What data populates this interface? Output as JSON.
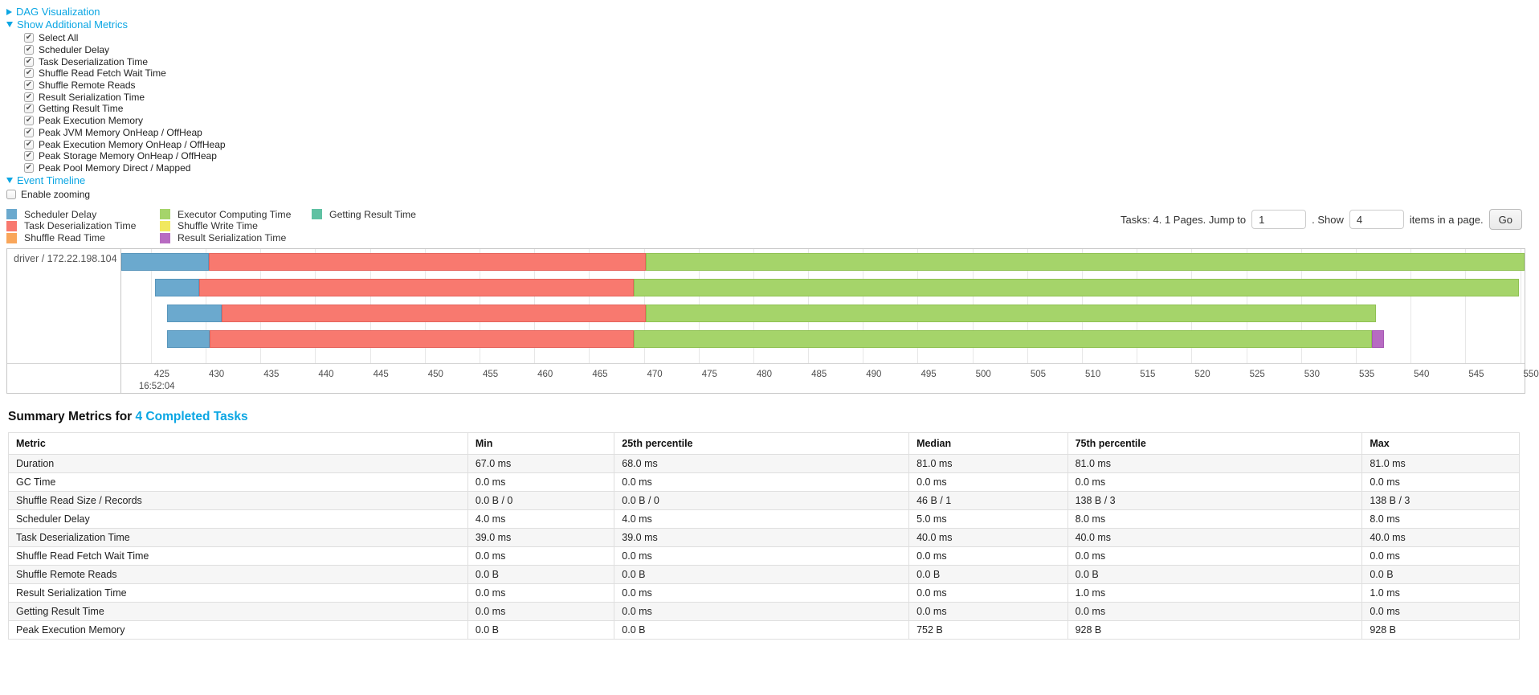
{
  "sections": {
    "dag": {
      "label": "DAG Visualization",
      "expanded": false
    },
    "metrics": {
      "label": "Show Additional Metrics",
      "expanded": true
    },
    "timeline": {
      "label": "Event Timeline",
      "expanded": true
    }
  },
  "metric_checkboxes": [
    {
      "label": "Select All",
      "checked": true
    },
    {
      "label": "Scheduler Delay",
      "checked": true
    },
    {
      "label": "Task Deserialization Time",
      "checked": true
    },
    {
      "label": "Shuffle Read Fetch Wait Time",
      "checked": true
    },
    {
      "label": "Shuffle Remote Reads",
      "checked": true
    },
    {
      "label": "Result Serialization Time",
      "checked": true
    },
    {
      "label": "Getting Result Time",
      "checked": true
    },
    {
      "label": "Peak Execution Memory",
      "checked": true
    },
    {
      "label": "Peak JVM Memory OnHeap / OffHeap",
      "checked": true
    },
    {
      "label": "Peak Execution Memory OnHeap / OffHeap",
      "checked": true
    },
    {
      "label": "Peak Storage Memory OnHeap / OffHeap",
      "checked": true
    },
    {
      "label": "Peak Pool Memory Direct / Mapped",
      "checked": true
    }
  ],
  "enable_zooming": {
    "label": "Enable zooming",
    "checked": false
  },
  "palette": {
    "scheduler_delay": {
      "fill": "#6BA9CE",
      "border": "#5795BB"
    },
    "task_deserialization": {
      "fill": "#F8796F",
      "border": "#E5635C"
    },
    "shuffle_read": {
      "fill": "#F9A65A",
      "border": "#E8924A"
    },
    "executor_computing": {
      "fill": "#A5D46A",
      "border": "#8FC152"
    },
    "shuffle_write": {
      "fill": "#F1E85F",
      "border": "#DCD34E"
    },
    "result_serialization": {
      "fill": "#B76BC2",
      "border": "#A659B3"
    },
    "getting_result": {
      "fill": "#60C1A3",
      "border": "#4FAE90"
    }
  },
  "legend_columns": [
    [
      {
        "key": "scheduler_delay",
        "label": "Scheduler Delay"
      },
      {
        "key": "task_deserialization",
        "label": "Task Deserialization Time"
      },
      {
        "key": "shuffle_read",
        "label": "Shuffle Read Time"
      }
    ],
    [
      {
        "key": "executor_computing",
        "label": "Executor Computing Time"
      },
      {
        "key": "shuffle_write",
        "label": "Shuffle Write Time"
      },
      {
        "key": "result_serialization",
        "label": "Result Serialization Time"
      }
    ],
    [
      {
        "key": "getting_result",
        "label": "Getting Result Time"
      }
    ]
  ],
  "pagination": {
    "text1": "Tasks: 4. 1 Pages. Jump to",
    "jump_value": "1",
    "text2": ". Show",
    "show_value": "4",
    "text3": "items in a page.",
    "go_label": "Go"
  },
  "chart_data": {
    "type": "gantt",
    "group_label": "driver / 172.22.198.104",
    "axis": {
      "min": 422.3,
      "max": 550.4,
      "tick_step": 5,
      "ticks": [
        425,
        430,
        435,
        440,
        445,
        450,
        455,
        460,
        465,
        470,
        475,
        480,
        485,
        490,
        495,
        500,
        505,
        510,
        515,
        520,
        525,
        530,
        535,
        540,
        545,
        550
      ],
      "first_tick_sublabel": "16:52:04"
    },
    "tasks": [
      {
        "segments": [
          {
            "type": "scheduler_delay",
            "start": 422.3,
            "end": 430.3
          },
          {
            "type": "task_deserialization",
            "start": 430.3,
            "end": 470.2
          },
          {
            "type": "executor_computing",
            "start": 470.2,
            "end": 550.4
          }
        ]
      },
      {
        "segments": [
          {
            "type": "scheduler_delay",
            "start": 425.4,
            "end": 429.4
          },
          {
            "type": "task_deserialization",
            "start": 429.4,
            "end": 469.1
          },
          {
            "type": "executor_computing",
            "start": 469.1,
            "end": 549.9
          }
        ]
      },
      {
        "segments": [
          {
            "type": "scheduler_delay",
            "start": 426.5,
            "end": 431.5
          },
          {
            "type": "task_deserialization",
            "start": 431.5,
            "end": 470.2
          },
          {
            "type": "executor_computing",
            "start": 470.2,
            "end": 536.8
          }
        ]
      },
      {
        "segments": [
          {
            "type": "scheduler_delay",
            "start": 426.5,
            "end": 430.4
          },
          {
            "type": "task_deserialization",
            "start": 430.4,
            "end": 469.1
          },
          {
            "type": "executor_computing",
            "start": 469.1,
            "end": 536.5
          },
          {
            "type": "result_serialization",
            "start": 536.5,
            "end": 537.6
          }
        ]
      }
    ]
  },
  "summary": {
    "title_prefix": "Summary Metrics for ",
    "title_link": "4 Completed Tasks",
    "columns": [
      "Metric",
      "Min",
      "25th percentile",
      "Median",
      "75th percentile",
      "Max"
    ],
    "col_widths_pct": [
      30.4,
      9.7,
      19.5,
      10.5,
      19.5,
      10.4
    ],
    "rows": [
      {
        "metric": "Duration",
        "values": [
          "67.0 ms",
          "68.0 ms",
          "81.0 ms",
          "81.0 ms",
          "81.0 ms"
        ]
      },
      {
        "metric": "GC Time",
        "values": [
          "0.0 ms",
          "0.0 ms",
          "0.0 ms",
          "0.0 ms",
          "0.0 ms"
        ]
      },
      {
        "metric": "Shuffle Read Size / Records",
        "values": [
          "0.0 B / 0",
          "0.0 B / 0",
          "46 B / 1",
          "138 B / 3",
          "138 B / 3"
        ]
      },
      {
        "metric": "Scheduler Delay",
        "values": [
          "4.0 ms",
          "4.0 ms",
          "5.0 ms",
          "8.0 ms",
          "8.0 ms"
        ]
      },
      {
        "metric": "Task Deserialization Time",
        "values": [
          "39.0 ms",
          "39.0 ms",
          "40.0 ms",
          "40.0 ms",
          "40.0 ms"
        ]
      },
      {
        "metric": "Shuffle Read Fetch Wait Time",
        "values": [
          "0.0 ms",
          "0.0 ms",
          "0.0 ms",
          "0.0 ms",
          "0.0 ms"
        ]
      },
      {
        "metric": "Shuffle Remote Reads",
        "values": [
          "0.0 B",
          "0.0 B",
          "0.0 B",
          "0.0 B",
          "0.0 B"
        ]
      },
      {
        "metric": "Result Serialization Time",
        "values": [
          "0.0 ms",
          "0.0 ms",
          "0.0 ms",
          "1.0 ms",
          "1.0 ms"
        ]
      },
      {
        "metric": "Getting Result Time",
        "values": [
          "0.0 ms",
          "0.0 ms",
          "0.0 ms",
          "0.0 ms",
          "0.0 ms"
        ]
      },
      {
        "metric": "Peak Execution Memory",
        "values": [
          "0.0 B",
          "0.0 B",
          "752 B",
          "928 B",
          "928 B"
        ]
      }
    ]
  }
}
